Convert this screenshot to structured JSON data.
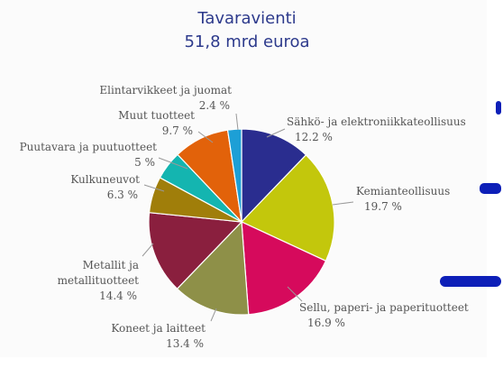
{
  "chart_data": {
    "type": "pie",
    "title": "Tavaravienti",
    "subtitle": "51,8 mrd euroa",
    "slices": [
      {
        "label": "Sähkö- ja elektroniikkateollisuus",
        "value": 12.2,
        "value_label": "12.2 %",
        "color": "#2a2d8f"
      },
      {
        "label": "Kemianteollisuus",
        "value": 19.7,
        "value_label": "19.7 %",
        "color": "#c3c70c"
      },
      {
        "label": "Sellu, paperi- ja paperituotteet",
        "value": 16.9,
        "value_label": "16.9 %",
        "color": "#d60a5c"
      },
      {
        "label": "Koneet ja laitteet",
        "value": 13.4,
        "value_label": "13.4 %",
        "color": "#8e9048"
      },
      {
        "label": "Metallit ja metallituotteet",
        "value": 14.4,
        "value_label": "14.4 %",
        "color": "#8a1f3e"
      },
      {
        "label": "Kulkuneuvot",
        "value": 6.3,
        "value_label": "6.3 %",
        "color": "#a07e0a"
      },
      {
        "label": "Puutavara ja puutuotteet",
        "value": 5,
        "value_label": "5 %",
        "color": "#14b5b0"
      },
      {
        "label": "Muut tuotteet",
        "value": 9.7,
        "value_label": "9.7 %",
        "color": "#e2620a"
      },
      {
        "label": "Elintarvikkeet ja juomat",
        "value": 2.4,
        "value_label": "2.4 %",
        "color": "#1d9fd6"
      }
    ],
    "start_angle_deg": 0,
    "direction": "clockwise",
    "legend": "none"
  }
}
